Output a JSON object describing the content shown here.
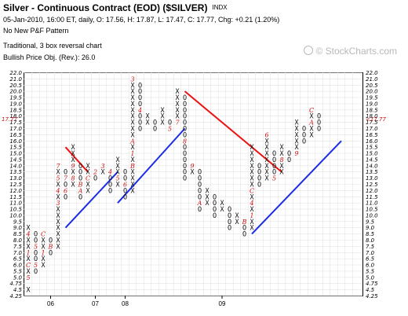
{
  "header": {
    "title": "Silver - Continuous Contract (EOD) ($SILVER)",
    "exchange": "INDX",
    "ohlc_line": "05-Jan-2010, 16:00 ET, daily, O: 17.56, H: 17.87, L: 17.47, C: 17.77, Chg: +0.21 (1.20%)",
    "pattern": "No New P&F Pattern",
    "method": "Traditional, 3 box reversal chart",
    "price_objective": "Bullish Price Obj. (Rev.): 26.0"
  },
  "branding": {
    "text": "© StockCharts.com",
    "icon": "globe-icon",
    "color": "#b8b8b8"
  },
  "chart_data": {
    "type": "point-and-figure",
    "box_size": 0.5,
    "reversal": 3,
    "ylim": [
      4.25,
      22.0
    ],
    "y_ticks_left": [
      "22.0",
      "21.0",
      "20.5",
      "20.0",
      "19.5",
      "19.0",
      "18.5",
      "18.0",
      "17.5",
      "17.0",
      "16.5",
      "16.0",
      "15.5",
      "15.0",
      "14.5",
      "14.0",
      "13.5",
      "13.0",
      "12.5",
      "12.0",
      "11.5",
      "11.0",
      "10.5",
      "10.0",
      "9.5",
      "9.0",
      "8.5",
      "8.0",
      "7.5",
      "7.0",
      "6.5",
      "6.0",
      "5.5",
      "5.0",
      "4.75",
      "4.5",
      "4.25"
    ],
    "y_ticks_right": [
      "22.0",
      "21.0",
      "20.5",
      "20.0",
      "19.5",
      "19.0",
      "18.5",
      "18.0",
      "17.5",
      "17.0",
      "16.5",
      "16.0",
      "15.5",
      "15.0",
      "14.5",
      "14.0",
      "13.5",
      "13.0",
      "12.5",
      "12.0",
      "11.5",
      "11.0",
      "10.5",
      "10.0",
      "9.5",
      "9.0",
      "8.5",
      "8.0",
      "7.5",
      "7.0",
      "6.5",
      "6.0",
      "5.5",
      "5.0",
      "4.75",
      "4.5",
      "4.25"
    ],
    "x_ticks": [
      {
        "label": "06",
        "col": 3
      },
      {
        "label": "07",
        "col": 9
      },
      {
        "label": "08",
        "col": 13
      },
      {
        "label": "09",
        "col": 26
      }
    ],
    "columns": [
      {
        "type": "X",
        "from": 4.5,
        "to": 9.0
      },
      {
        "type": "O",
        "from": 5.5,
        "to": 8.5
      },
      {
        "type": "X",
        "from": 6.0,
        "to": 8.5
      },
      {
        "type": "O",
        "from": 7.0,
        "to": 8.0
      },
      {
        "type": "X",
        "from": 7.5,
        "to": 14.0
      },
      {
        "type": "O",
        "from": 11.5,
        "to": 13.5
      },
      {
        "type": "X",
        "from": 12.5,
        "to": 15.5
      },
      {
        "type": "O",
        "from": 11.5,
        "to": 14.0
      },
      {
        "type": "X",
        "from": 12.0,
        "to": 14.0
      },
      {
        "type": "O",
        "from": 13.0,
        "to": 13.5
      },
      {
        "type": "X",
        "from": 13.5,
        "to": 14.0
      },
      {
        "type": "O",
        "from": 12.0,
        "to": 13.5
      },
      {
        "type": "X",
        "from": 12.5,
        "to": 14.5
      },
      {
        "type": "O",
        "from": 11.5,
        "to": 13.5
      },
      {
        "type": "X",
        "from": 12.0,
        "to": 21.0
      },
      {
        "type": "O",
        "from": 17.0,
        "to": 20.5
      },
      {
        "type": "X",
        "from": 17.5,
        "to": 18.0
      },
      {
        "type": "O",
        "from": 17.0,
        "to": 17.5
      },
      {
        "type": "X",
        "from": 17.5,
        "to": 18.5
      },
      {
        "type": "O",
        "from": 17.0,
        "to": 17.5
      },
      {
        "type": "X",
        "from": 17.5,
        "to": 20.0
      },
      {
        "type": "O",
        "from": 13.0,
        "to": 19.5
      },
      {
        "type": "X",
        "from": 13.5,
        "to": 14.0
      },
      {
        "type": "O",
        "from": 10.5,
        "to": 13.5
      },
      {
        "type": "X",
        "from": 11.0,
        "to": 12.0
      },
      {
        "type": "O",
        "from": 10.0,
        "to": 11.5
      },
      {
        "type": "X",
        "from": 10.5,
        "to": 11.0
      },
      {
        "type": "O",
        "from": 9.0,
        "to": 10.5
      },
      {
        "type": "X",
        "from": 9.5,
        "to": 10.0
      },
      {
        "type": "O",
        "from": 8.5,
        "to": 9.5
      },
      {
        "type": "X",
        "from": 9.0,
        "to": 15.5
      },
      {
        "type": "O",
        "from": 12.5,
        "to": 14.0
      },
      {
        "type": "X",
        "from": 13.0,
        "to": 16.5
      },
      {
        "type": "O",
        "from": 13.0,
        "to": 15.0
      },
      {
        "type": "X",
        "from": 13.5,
        "to": 15.5
      },
      {
        "type": "O",
        "from": 14.5,
        "to": 15.0
      },
      {
        "type": "X",
        "from": 15.0,
        "to": 17.5
      },
      {
        "type": "O",
        "from": 16.0,
        "to": 17.0
      },
      {
        "type": "X",
        "from": 16.5,
        "to": 18.5
      },
      {
        "type": "O",
        "from": 17.0,
        "to": 18.0
      }
    ],
    "month_markers": [
      {
        "col": 0,
        "price": 8.5,
        "label": "4"
      },
      {
        "col": 0,
        "price": 7.0,
        "label": "1"
      },
      {
        "col": 0,
        "price": 6.0,
        "label": "C"
      },
      {
        "col": 0,
        "price": 5.0,
        "label": "5"
      },
      {
        "col": 1,
        "price": 7.5,
        "label": "5"
      },
      {
        "col": 1,
        "price": 6.0,
        "label": "5"
      },
      {
        "col": 2,
        "price": 8.5,
        "label": "C"
      },
      {
        "col": 2,
        "price": 7.0,
        "label": "1"
      },
      {
        "col": 3,
        "price": 8.5,
        "label": "C"
      },
      {
        "col": 3,
        "price": 7.5,
        "label": "B"
      },
      {
        "col": 4,
        "price": 11.0,
        "label": "3"
      },
      {
        "col": 4,
        "price": 12.0,
        "label": "4"
      },
      {
        "col": 4,
        "price": 13.0,
        "label": "5"
      },
      {
        "col": 4,
        "price": 14.0,
        "label": "7"
      },
      {
        "col": 5,
        "price": 12.0,
        "label": "6"
      },
      {
        "col": 5,
        "price": 13.0,
        "label": "7"
      },
      {
        "col": 6,
        "price": 13.0,
        "label": "8"
      },
      {
        "col": 6,
        "price": 14.0,
        "label": "9"
      },
      {
        "col": 7,
        "price": 12.5,
        "label": "B"
      },
      {
        "col": 7,
        "price": 12.0,
        "label": "A"
      },
      {
        "col": 8,
        "price": 13.0,
        "label": "C"
      },
      {
        "col": 9,
        "price": 13.5,
        "label": "2"
      },
      {
        "col": 10,
        "price": 14.0,
        "label": "3"
      },
      {
        "col": 11,
        "price": 13.5,
        "label": "4"
      },
      {
        "col": 12,
        "price": 13.0,
        "label": "5"
      },
      {
        "col": 13,
        "price": 12.5,
        "label": "6"
      },
      {
        "col": 14,
        "price": 14.0,
        "label": "B"
      },
      {
        "col": 14,
        "price": 15.0,
        "label": "1"
      },
      {
        "col": 14,
        "price": 16.0,
        "label": "A"
      },
      {
        "col": 14,
        "price": 21.0,
        "label": "3"
      },
      {
        "col": 15,
        "price": 18.5,
        "label": "4"
      },
      {
        "col": 19,
        "price": 17.0,
        "label": "5"
      },
      {
        "col": 20,
        "price": 17.5,
        "label": "7"
      },
      {
        "col": 21,
        "price": 16.0,
        "label": "8"
      },
      {
        "col": 22,
        "price": 14.0,
        "label": "9"
      },
      {
        "col": 23,
        "price": 11.0,
        "label": "A"
      },
      {
        "col": 29,
        "price": 9.5,
        "label": "B"
      },
      {
        "col": 30,
        "price": 10.0,
        "label": "1"
      },
      {
        "col": 30,
        "price": 11.0,
        "label": "4"
      },
      {
        "col": 30,
        "price": 12.0,
        "label": "C"
      },
      {
        "col": 32,
        "price": 16.5,
        "label": "6"
      },
      {
        "col": 33,
        "price": 13.0,
        "label": "5"
      },
      {
        "col": 34,
        "price": 14.5,
        "label": "8"
      },
      {
        "col": 36,
        "price": 15.0,
        "label": "9"
      },
      {
        "col": 38,
        "price": 18.5,
        "label": "C"
      },
      {
        "col": 38,
        "price": 17.5,
        "label": "A"
      }
    ],
    "trendlines": [
      {
        "kind": "bearish-resistance",
        "color": "#ee1111",
        "from": {
          "col": 5,
          "price": 15.5
        },
        "to": {
          "col": 8,
          "price": 13.5
        }
      },
      {
        "kind": "bearish-resistance",
        "color": "#ee1111",
        "from": {
          "col": 21,
          "price": 20.0
        },
        "to": {
          "col": 34,
          "price": 13.5
        }
      },
      {
        "kind": "bullish-support",
        "color": "#1a2ce6",
        "from": {
          "col": 5,
          "price": 9.0
        },
        "to": {
          "col": 12,
          "price": 13.5
        }
      },
      {
        "kind": "bullish-support",
        "color": "#1a2ce6",
        "from": {
          "col": 12,
          "price": 11.0
        },
        "to": {
          "col": 21,
          "price": 17.0
        }
      },
      {
        "kind": "bullish-support",
        "color": "#1a2ce6",
        "from": {
          "col": 30,
          "price": 8.5
        },
        "to": {
          "col": 42,
          "price": 16.0
        }
      }
    ],
    "last_price_label": "17.77",
    "last_price": 17.77,
    "grid": true
  }
}
